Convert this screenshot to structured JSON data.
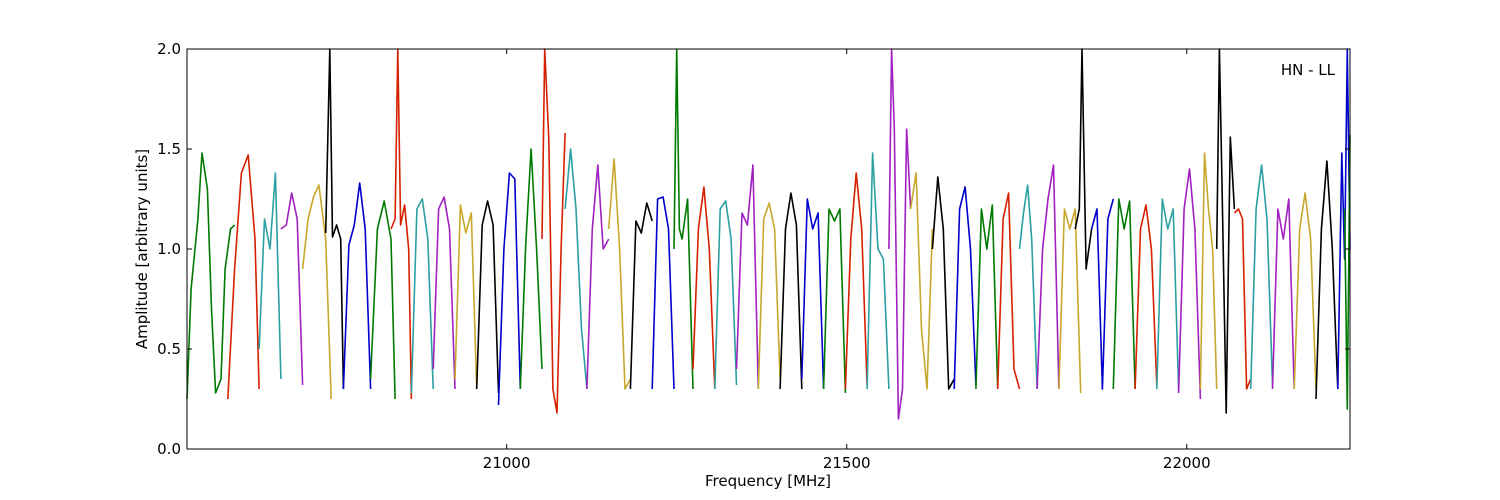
{
  "chart_data": {
    "type": "line",
    "title": "",
    "xlabel": "Frequency [MHz]",
    "ylabel": "Amplitude [arbitrary units]",
    "annotation": "HN - LL",
    "xlim": [
      20530,
      22240
    ],
    "ylim": [
      0.0,
      2.0
    ],
    "xticks": [
      21000,
      21500,
      22000
    ],
    "yticks": [
      0.0,
      0.5,
      1.0,
      1.5,
      2.0
    ],
    "ytick_labels": [
      "0.0",
      "0.5",
      "1.0",
      "1.5",
      "2.0"
    ],
    "grid": false,
    "series": [
      {
        "color": "#007a00",
        "x": [
          20530,
          20536,
          20546,
          20552,
          20560,
          20566,
          20572,
          20580,
          20586,
          20594,
          20600
        ],
        "y": [
          0.25,
          0.8,
          1.15,
          1.48,
          1.3,
          0.7,
          0.28,
          0.35,
          0.9,
          1.1,
          1.12
        ]
      },
      {
        "color": "#d62000",
        "x": [
          20590,
          20600,
          20610,
          20620,
          20630,
          20636
        ],
        "y": [
          0.25,
          0.9,
          1.38,
          1.47,
          1.05,
          0.3
        ]
      },
      {
        "color": "#2ca0a0",
        "x": [
          20636,
          20644,
          20652,
          20660,
          20668
        ],
        "y": [
          0.5,
          1.15,
          1.0,
          1.38,
          0.35
        ]
      },
      {
        "color": "#a020c0",
        "x": [
          20668,
          20676,
          20684,
          20692,
          20700
        ],
        "y": [
          1.1,
          1.12,
          1.28,
          1.15,
          0.32
        ]
      },
      {
        "color": "#c8a82c",
        "x": [
          20700,
          20708,
          20716,
          20724,
          20734,
          20742
        ],
        "y": [
          0.9,
          1.15,
          1.26,
          1.32,
          1.05,
          0.25
        ]
      },
      {
        "color": "#000000",
        "x": [
          20734,
          20740,
          20744,
          20750,
          20756,
          20760
        ],
        "y": [
          1.08,
          2.0,
          1.06,
          1.12,
          1.05,
          0.3
        ]
      },
      {
        "color": "#0000cc",
        "x": [
          20760,
          20768,
          20776,
          20784,
          20792,
          20800
        ],
        "y": [
          0.3,
          1.02,
          1.12,
          1.33,
          1.1,
          0.3
        ]
      },
      {
        "color": "#007a00",
        "x": [
          20800,
          20810,
          20820,
          20830,
          20836
        ],
        "y": [
          0.35,
          1.1,
          1.24,
          1.05,
          0.25
        ]
      },
      {
        "color": "#d62000",
        "x": [
          20830,
          20836,
          20840,
          20844,
          20850,
          20856,
          20860
        ],
        "y": [
          1.1,
          1.15,
          2.0,
          1.12,
          1.22,
          1.0,
          0.25
        ]
      },
      {
        "color": "#2ca0a0",
        "x": [
          20860,
          20868,
          20876,
          20884,
          20892
        ],
        "y": [
          0.28,
          1.2,
          1.25,
          1.05,
          0.3
        ]
      },
      {
        "color": "#a020c0",
        "x": [
          20892,
          20900,
          20908,
          20916,
          20924
        ],
        "y": [
          0.4,
          1.2,
          1.26,
          1.1,
          0.3
        ]
      },
      {
        "color": "#c8a82c",
        "x": [
          20924,
          20932,
          20940,
          20948,
          20956
        ],
        "y": [
          0.35,
          1.22,
          1.08,
          1.18,
          0.3
        ]
      },
      {
        "color": "#000000",
        "x": [
          20956,
          20964,
          20972,
          20980,
          20988
        ],
        "y": [
          0.3,
          1.12,
          1.24,
          1.12,
          0.28
        ]
      },
      {
        "color": "#0000cc",
        "x": [
          20988,
          20996,
          21004,
          21012,
          21020
        ],
        "y": [
          0.22,
          1.0,
          1.38,
          1.35,
          0.3
        ]
      },
      {
        "color": "#007a00",
        "x": [
          21020,
          21028,
          21036,
          21044,
          21052
        ],
        "y": [
          0.3,
          1.02,
          1.5,
          1.0,
          0.4
        ]
      },
      {
        "color": "#d62000",
        "x": [
          21052,
          21056,
          21062,
          21068,
          21074,
          21080,
          21086
        ],
        "y": [
          1.05,
          2.0,
          1.55,
          0.3,
          0.18,
          1.0,
          1.58
        ]
      },
      {
        "color": "#2ca0a0",
        "x": [
          21086,
          21094,
          21102,
          21110,
          21118
        ],
        "y": [
          1.2,
          1.5,
          1.2,
          0.6,
          0.3
        ]
      },
      {
        "color": "#a020c0",
        "x": [
          21118,
          21126,
          21134,
          21142,
          21150
        ],
        "y": [
          0.3,
          1.1,
          1.42,
          1.0,
          1.05
        ]
      },
      {
        "color": "#c8a82c",
        "x": [
          21150,
          21158,
          21166,
          21174,
          21182
        ],
        "y": [
          1.1,
          1.45,
          1.0,
          0.3,
          0.35
        ]
      },
      {
        "color": "#000000",
        "x": [
          21182,
          21190,
          21198,
          21206,
          21214
        ],
        "y": [
          0.3,
          1.14,
          1.08,
          1.23,
          1.14
        ]
      },
      {
        "color": "#0000cc",
        "x": [
          21214,
          21222,
          21230,
          21238,
          21246
        ],
        "y": [
          0.3,
          1.25,
          1.26,
          1.1,
          0.3
        ]
      },
      {
        "color": "#007a00",
        "x": [
          21246,
          21250,
          21254,
          21258,
          21266,
          21274
        ],
        "y": [
          1.0,
          2.0,
          1.1,
          1.05,
          1.25,
          0.3
        ]
      },
      {
        "color": "#d62000",
        "x": [
          21274,
          21282,
          21290,
          21298,
          21306
        ],
        "y": [
          0.4,
          1.1,
          1.31,
          1.0,
          0.3
        ]
      },
      {
        "color": "#2ca0a0",
        "x": [
          21306,
          21314,
          21322,
          21330,
          21338
        ],
        "y": [
          0.3,
          1.2,
          1.24,
          1.05,
          0.32
        ]
      },
      {
        "color": "#a020c0",
        "x": [
          21338,
          21346,
          21354,
          21362,
          21370
        ],
        "y": [
          0.4,
          1.18,
          1.12,
          1.42,
          0.3
        ]
      },
      {
        "color": "#c8a82c",
        "x": [
          21370,
          21378,
          21386,
          21394,
          21402
        ],
        "y": [
          0.3,
          1.15,
          1.23,
          1.1,
          0.35
        ]
      },
      {
        "color": "#000000",
        "x": [
          21402,
          21410,
          21418,
          21426,
          21434
        ],
        "y": [
          0.3,
          1.1,
          1.28,
          1.12,
          0.3
        ]
      },
      {
        "color": "#0000cc",
        "x": [
          21434,
          21442,
          21450,
          21458,
          21466
        ],
        "y": [
          0.35,
          1.25,
          1.1,
          1.18,
          0.3
        ]
      },
      {
        "color": "#007a00",
        "x": [
          21466,
          21474,
          21482,
          21490,
          21498
        ],
        "y": [
          0.3,
          1.2,
          1.14,
          1.2,
          0.28
        ]
      },
      {
        "color": "#d62000",
        "x": [
          21498,
          21506,
          21514,
          21522,
          21530
        ],
        "y": [
          0.3,
          1.05,
          1.38,
          1.1,
          0.32
        ]
      },
      {
        "color": "#2ca0a0",
        "x": [
          21530,
          21538,
          21546,
          21554,
          21562
        ],
        "y": [
          0.3,
          1.48,
          1.0,
          0.95,
          0.3
        ]
      },
      {
        "color": "#a020c0",
        "x": [
          21562,
          21566,
          21570,
          21576,
          21582,
          21588,
          21594
        ],
        "y": [
          1.0,
          2.0,
          1.6,
          0.15,
          0.3,
          1.6,
          1.2
        ]
      },
      {
        "color": "#c8a82c",
        "x": [
          21594,
          21602,
          21610,
          21618,
          21626
        ],
        "y": [
          1.2,
          1.38,
          0.6,
          0.3,
          1.1
        ]
      },
      {
        "color": "#000000",
        "x": [
          21626,
          21634,
          21642,
          21650,
          21658
        ],
        "y": [
          1.0,
          1.36,
          1.1,
          0.3,
          0.35
        ]
      },
      {
        "color": "#0000cc",
        "x": [
          21658,
          21666,
          21674,
          21682,
          21690
        ],
        "y": [
          0.3,
          1.2,
          1.31,
          1.0,
          0.32
        ]
      },
      {
        "color": "#007a00",
        "x": [
          21690,
          21698,
          21706,
          21714,
          21722
        ],
        "y": [
          0.3,
          1.2,
          1.0,
          1.22,
          0.3
        ]
      },
      {
        "color": "#d62000",
        "x": [
          21722,
          21730,
          21738,
          21746,
          21754
        ],
        "y": [
          0.3,
          1.15,
          1.28,
          0.4,
          0.3
        ]
      },
      {
        "color": "#2ca0a0",
        "x": [
          21754,
          21760,
          21766,
          21772,
          21780
        ],
        "y": [
          1.0,
          1.18,
          1.32,
          1.05,
          0.3
        ]
      },
      {
        "color": "#a020c0",
        "x": [
          21780,
          21788,
          21796,
          21804,
          21812
        ],
        "y": [
          0.3,
          1.0,
          1.25,
          1.42,
          0.3
        ]
      },
      {
        "color": "#c8a82c",
        "x": [
          21812,
          21820,
          21828,
          21836,
          21844
        ],
        "y": [
          0.3,
          1.2,
          1.1,
          1.2,
          0.28
        ]
      },
      {
        "color": "#000000",
        "x": [
          21836,
          21842,
          21846,
          21852,
          21860
        ],
        "y": [
          1.1,
          1.2,
          2.0,
          0.9,
          1.1
        ]
      },
      {
        "color": "#0000cc",
        "x": [
          21860,
          21868,
          21876,
          21884,
          21892
        ],
        "y": [
          1.1,
          1.2,
          0.3,
          1.15,
          1.25
        ]
      },
      {
        "color": "#007a00",
        "x": [
          21892,
          21900,
          21908,
          21916,
          21924
        ],
        "y": [
          0.3,
          1.25,
          1.1,
          1.24,
          0.3
        ]
      },
      {
        "color": "#d62000",
        "x": [
          21924,
          21932,
          21940,
          21948,
          21956
        ],
        "y": [
          0.3,
          1.1,
          1.22,
          1.0,
          0.32
        ]
      },
      {
        "color": "#2ca0a0",
        "x": [
          21956,
          21964,
          21972,
          21980,
          21988
        ],
        "y": [
          0.3,
          1.25,
          1.1,
          1.2,
          0.3
        ]
      },
      {
        "color": "#a020c0",
        "x": [
          21988,
          21996,
          22004,
          22012,
          22020
        ],
        "y": [
          0.28,
          1.2,
          1.4,
          1.1,
          0.25
        ]
      },
      {
        "color": "#c8a82c",
        "x": [
          22020,
          22026,
          22032,
          22038,
          22044
        ],
        "y": [
          0.3,
          1.48,
          1.2,
          1.0,
          0.3
        ]
      },
      {
        "color": "#000000",
        "x": [
          22044,
          22048,
          22052,
          22058,
          22064,
          22070
        ],
        "y": [
          1.0,
          2.0,
          1.3,
          0.18,
          1.56,
          1.2
        ]
      },
      {
        "color": "#d62000",
        "x": [
          22070,
          22076,
          22082,
          22088,
          22094
        ],
        "y": [
          1.18,
          1.2,
          1.15,
          0.3,
          0.35
        ]
      },
      {
        "color": "#2ca0a0",
        "x": [
          22094,
          22102,
          22110,
          22118,
          22126
        ],
        "y": [
          0.3,
          1.2,
          1.42,
          1.15,
          0.32
        ]
      },
      {
        "color": "#a020c0",
        "x": [
          22126,
          22134,
          22142,
          22150,
          22158
        ],
        "y": [
          0.3,
          1.2,
          1.05,
          1.25,
          0.3
        ]
      },
      {
        "color": "#c8a82c",
        "x": [
          22158,
          22166,
          22174,
          22182,
          22190
        ],
        "y": [
          0.3,
          1.1,
          1.28,
          1.05,
          0.3
        ]
      },
      {
        "color": "#000000",
        "x": [
          22190,
          22198,
          22206,
          22214,
          22222
        ],
        "y": [
          0.25,
          1.1,
          1.44,
          1.0,
          0.3
        ]
      },
      {
        "color": "#0000cc",
        "x": [
          22222,
          22228,
          22232,
          22236,
          22240
        ],
        "y": [
          0.3,
          1.48,
          0.95,
          2.0,
          1.0
        ]
      },
      {
        "color": "#007a00",
        "x": [
          22232,
          22236,
          22240
        ],
        "y": [
          1.2,
          0.2,
          1.57
        ]
      }
    ]
  }
}
